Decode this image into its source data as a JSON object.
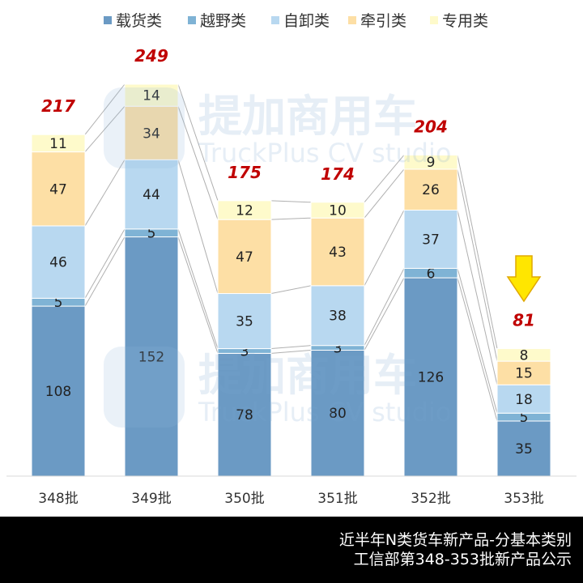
{
  "chart_data": {
    "type": "bar",
    "stacked": true,
    "categories": [
      "348批",
      "349批",
      "350批",
      "351批",
      "352批",
      "353批"
    ],
    "series": [
      {
        "name": "载货类",
        "color": "#6B9AC4",
        "values": [
          108,
          152,
          78,
          80,
          126,
          35
        ]
      },
      {
        "name": "越野类",
        "color": "#7FB3D5",
        "values": [
          5,
          5,
          3,
          3,
          6,
          5
        ]
      },
      {
        "name": "自卸类",
        "color": "#B8D8F0",
        "values": [
          46,
          44,
          35,
          38,
          37,
          18
        ]
      },
      {
        "name": "牵引类",
        "color": "#FDDFA5",
        "values": [
          47,
          34,
          47,
          43,
          26,
          15
        ]
      },
      {
        "name": "专用类",
        "color": "#FEFACB",
        "values": [
          11,
          14,
          12,
          10,
          9,
          8
        ]
      }
    ],
    "totals": [
      217,
      249,
      175,
      174,
      204,
      81
    ],
    "total_color": "#C00000",
    "legend_position": "top",
    "grid": false,
    "ylim": [
      0,
      260
    ],
    "highlight": {
      "category": "353批",
      "marker": "down-arrow-icon",
      "color": "#FFE600"
    }
  },
  "watermark": {
    "brand": "提加商用车",
    "sub": "TruckPlus CV studio"
  },
  "footer": {
    "line1": "近半年N类货车新产品-分基本类别",
    "line2": "工信部第348-353批新产品公示"
  }
}
